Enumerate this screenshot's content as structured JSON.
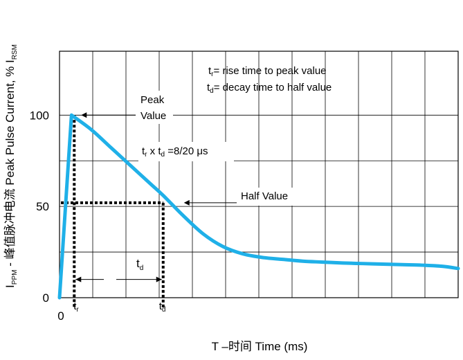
{
  "chart_data": {
    "type": "line",
    "xlabel": "T –时间 Time (ms)",
    "ylabel": {
      "p1": "I",
      "p1_sub": "PPM",
      "p2": " - 峰值脉冲电流 Peak Pulse Current, % I",
      "p2_sub": "RSM"
    },
    "xlim": [
      0,
      1
    ],
    "ylim": [
      0,
      135
    ],
    "yticks": [
      "0",
      "50",
      "100"
    ],
    "ytick_values": [
      0,
      50,
      100
    ],
    "xtick_zero": "0",
    "grid": true,
    "series": [
      {
        "color": "#1fb0e8",
        "x": [
          0,
          0.03,
          0.08,
          0.13,
          0.18,
          0.23,
          0.26,
          0.31,
          0.36,
          0.41,
          0.46,
          0.51,
          0.56,
          0.61,
          0.66,
          0.71,
          0.76,
          0.81,
          0.86,
          0.91,
          0.96,
          1.0
        ],
        "y": [
          0,
          100,
          92,
          82,
          72,
          62,
          56,
          45,
          35,
          28,
          24,
          22,
          21,
          20,
          19.5,
          19,
          18.7,
          18.4,
          18.1,
          17.8,
          17.2,
          16
        ]
      }
    ],
    "guides": {
      "tr_x": 0.03,
      "td_x": 0.26,
      "half_value": 52,
      "arrow_y": 10
    },
    "annotations": {
      "legend_tr_main": "t",
      "legend_tr_sub": "r",
      "legend_tr_rest": "= rise time to peak value",
      "legend_td_main": "t",
      "legend_td_sub": "d",
      "legend_td_rest": "= decay time to half value",
      "peak_line1": "Peak",
      "peak_line2": "Value",
      "ratio_tr": "t",
      "ratio_tr_sub": "r",
      "ratio_x": " x t",
      "ratio_td_sub": "d",
      "ratio_rest": " =8/20 μs",
      "half_value": "Half Value",
      "td_mid_main": "t",
      "td_mid_sub": "d",
      "tr_axis_main": "t",
      "tr_axis_sub": "r",
      "td_axis_main": "t",
      "td_axis_sub": "d"
    }
  }
}
